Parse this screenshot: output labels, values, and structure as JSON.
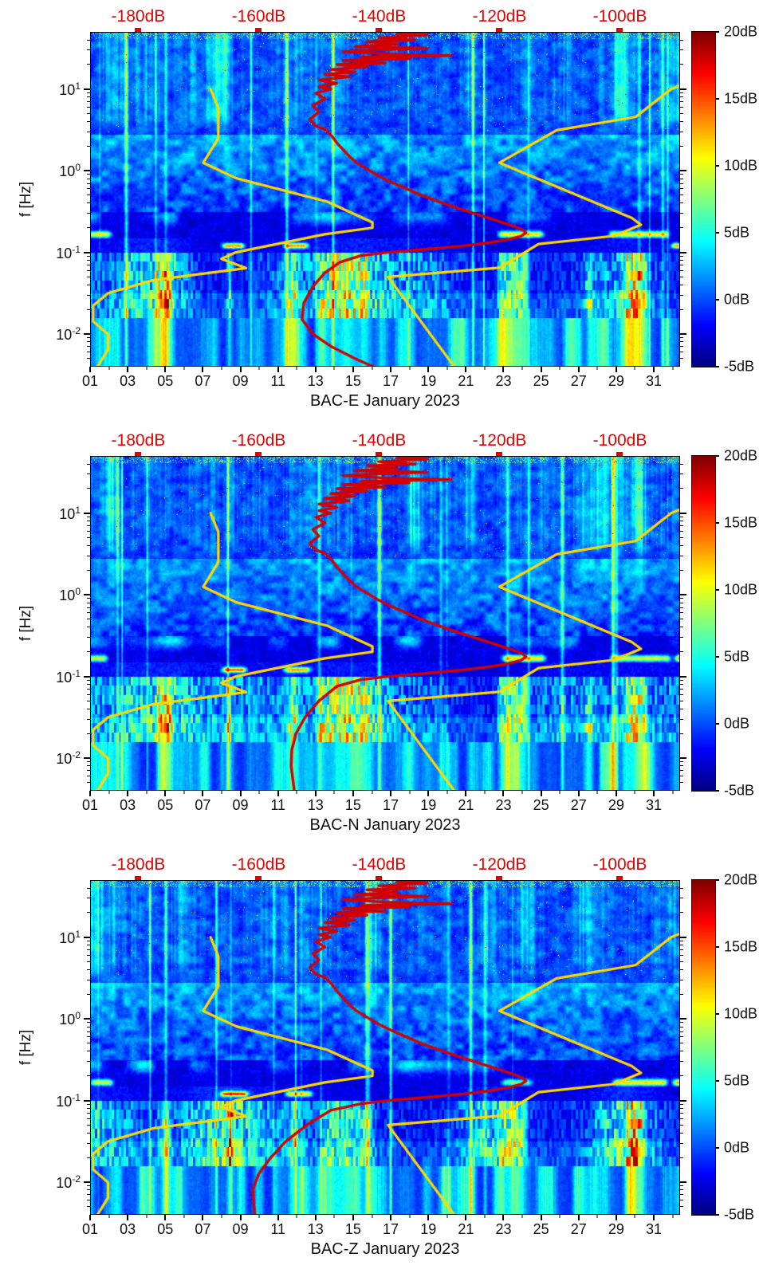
{
  "figure": {
    "background": "#ffffff"
  },
  "colors": {
    "top_axis_red": "#e60000",
    "red_curve": "#d40000",
    "yellow_curve": "#ffd900",
    "axis_text": "#111111",
    "tick": "#000000"
  },
  "top_axis": {
    "ticks": [
      "-180dB",
      "-160dB",
      "-140dB",
      "-120dB",
      "-100dB"
    ],
    "values": [
      -180,
      -160,
      -140,
      -120,
      -100
    ],
    "range": [
      -188,
      -90
    ]
  },
  "y_axis": {
    "label": "f [Hz]",
    "base": "10",
    "ticks": [
      {
        "exp": "1"
      },
      {
        "exp": "0"
      },
      {
        "exp": "-1"
      },
      {
        "exp": "-2"
      }
    ],
    "tick_values": [
      1,
      0,
      -1,
      -2
    ],
    "log_range": [
      1.7,
      -2.4
    ]
  },
  "x_axis": {
    "tick_labels": [
      "01",
      "03",
      "05",
      "07",
      "09",
      "11",
      "13",
      "15",
      "17",
      "19",
      "21",
      "23",
      "25",
      "27",
      "29",
      "31"
    ],
    "tick_days": [
      1,
      3,
      5,
      7,
      9,
      11,
      13,
      15,
      17,
      19,
      21,
      23,
      25,
      27,
      29,
      31
    ],
    "range": [
      1,
      32.4
    ]
  },
  "colorbar": {
    "ticks": [
      "20dB",
      "15dB",
      "10dB",
      "5dB",
      "0dB",
      "-5dB"
    ],
    "values": [
      20,
      15,
      10,
      5,
      0,
      -5
    ],
    "range": [
      -5,
      20
    ]
  },
  "noise_models": {
    "nlnm": [
      [
        1.0,
        -168.0
      ],
      [
        0.77,
        -166.7
      ],
      [
        0.398,
        -166.7
      ],
      [
        0.097,
        -169.2
      ],
      [
        -0.093,
        -163.7
      ],
      [
        -0.38,
        -148.6
      ],
      [
        -0.633,
        -141.1
      ],
      [
        -0.699,
        -141.1
      ],
      [
        -0.778,
        -149.0
      ],
      [
        -1.0,
        -163.8
      ],
      [
        -1.079,
        -166.2
      ],
      [
        -1.193,
        -162.1
      ],
      [
        -1.34,
        -177.5
      ],
      [
        -1.5,
        -185.0
      ],
      [
        -1.653,
        -187.5
      ],
      [
        -1.845,
        -187.5
      ],
      [
        -2.004,
        -185.0
      ],
      [
        -2.188,
        -185.0
      ],
      [
        -2.45,
        -187.2
      ]
    ],
    "nhnm": [
      [
        1.05,
        -89.8
      ],
      [
        1.0,
        -91.5
      ],
      [
        0.658,
        -97.4
      ],
      [
        0.495,
        -110.5
      ],
      [
        0.097,
        -120.0
      ],
      [
        -0.58,
        -98.0
      ],
      [
        -0.663,
        -96.5
      ],
      [
        -0.799,
        -101.0
      ],
      [
        -0.898,
        -113.5
      ],
      [
        -1.188,
        -120.0
      ],
      [
        -1.301,
        -138.5
      ],
      [
        -2.45,
        -127.0
      ]
    ]
  },
  "median_head": [
    [
      1.7,
      -131
    ],
    [
      1.68,
      -137
    ],
    [
      1.66,
      -132
    ],
    [
      1.63,
      -140
    ],
    [
      1.6,
      -134
    ],
    [
      1.58,
      -142
    ],
    [
      1.55,
      -137
    ],
    [
      1.52,
      -144
    ],
    [
      1.5,
      -132
    ],
    [
      1.48,
      -140
    ],
    [
      1.46,
      -146
    ],
    [
      1.43,
      -139
    ],
    [
      1.41,
      -128
    ],
    [
      1.39,
      -143
    ],
    [
      1.37,
      -135
    ],
    [
      1.35,
      -146
    ],
    [
      1.32,
      -139
    ],
    [
      1.3,
      -147
    ],
    [
      1.27,
      -142
    ],
    [
      1.24,
      -148
    ],
    [
      1.21,
      -144
    ],
    [
      1.18,
      -149
    ],
    [
      1.15,
      -145
    ],
    [
      1.11,
      -150
    ],
    [
      1.07,
      -147
    ],
    [
      1.03,
      -150
    ],
    [
      1.0,
      -148
    ],
    [
      0.95,
      -150.5
    ],
    [
      0.88,
      -149
    ],
    [
      0.8,
      -151
    ],
    [
      0.72,
      -150
    ],
    [
      0.63,
      -151.5
    ],
    [
      0.55,
      -150.5
    ],
    [
      0.5,
      -148.8
    ]
  ],
  "median_mid": [
    [
      0.42,
      -147.8
    ],
    [
      0.34,
      -147
    ],
    [
      0.26,
      -146
    ],
    [
      0.18,
      -145
    ],
    [
      0.1,
      -143.8
    ],
    [
      0.02,
      -142
    ],
    [
      -0.06,
      -140.2
    ],
    [
      -0.14,
      -138
    ],
    [
      -0.22,
      -135.5
    ],
    [
      -0.3,
      -133
    ],
    [
      -0.38,
      -130
    ],
    [
      -0.46,
      -126.8
    ],
    [
      -0.54,
      -123.5
    ],
    [
      -0.61,
      -120.5
    ],
    [
      -0.67,
      -118
    ],
    [
      -0.72,
      -116.2
    ],
    [
      -0.76,
      -115.6
    ],
    [
      -0.8,
      -116.4
    ],
    [
      -0.84,
      -118.4
    ],
    [
      -0.88,
      -121.5
    ],
    [
      -0.92,
      -126
    ],
    [
      -0.96,
      -132
    ],
    [
      -1.0,
      -138.5
    ],
    [
      -1.04,
      -143
    ]
  ],
  "chart_data": [
    {
      "type": "heatmap",
      "component": "E",
      "title": "BAC-E January 2023",
      "xlabel": "BAC-E January 2023",
      "ylabel": "f [Hz]",
      "units": "dB",
      "noise_seed": 101,
      "streaks_017": [
        [
          0.8,
          2.2,
          13
        ],
        [
          22.6,
          25.2,
          14
        ],
        [
          28.5,
          31.9,
          13
        ]
      ],
      "streaks_010": [
        [
          7.9,
          9.3,
          16
        ],
        [
          11.2,
          12.7,
          15
        ],
        [
          31.8,
          32.6,
          16
        ]
      ],
      "swell_cols": [
        [
          4.5,
          5.5,
          12
        ],
        [
          8.2,
          8.6,
          15
        ],
        [
          11.4,
          12.2,
          9
        ],
        [
          13.0,
          16.0,
          6
        ],
        [
          22.6,
          24.4,
          10
        ],
        [
          27.2,
          27.9,
          8
        ],
        [
          29.2,
          30.8,
          11
        ]
      ],
      "median_tail": [
        [
          -1.12,
          -146.5
        ],
        [
          -1.25,
          -149
        ],
        [
          -1.42,
          -151
        ],
        [
          -1.62,
          -152.5
        ],
        [
          -1.82,
          -152.8
        ],
        [
          -2.0,
          -151
        ],
        [
          -2.15,
          -148
        ],
        [
          -2.3,
          -144
        ],
        [
          -2.45,
          -139.5
        ]
      ]
    },
    {
      "type": "heatmap",
      "component": "N",
      "title": "BAC-N January 2023",
      "xlabel": "BAC-N January 2023",
      "ylabel": "f [Hz]",
      "units": "dB",
      "noise_seed": 202,
      "streaks_017": [
        [
          0.8,
          2.0,
          12
        ],
        [
          22.8,
          25.3,
          14
        ],
        [
          28.6,
          32.0,
          12
        ],
        [
          32.0,
          32.6,
          18
        ]
      ],
      "streaks_010": [
        [
          7.9,
          9.4,
          16
        ],
        [
          11.2,
          12.8,
          15
        ]
      ],
      "swell_cols": [
        [
          4.5,
          5.5,
          12
        ],
        [
          8.2,
          8.6,
          14
        ],
        [
          11.4,
          12.2,
          9
        ],
        [
          13.0,
          16.2,
          7
        ],
        [
          22.6,
          24.4,
          10
        ],
        [
          27.2,
          27.9,
          8
        ],
        [
          29.2,
          30.8,
          10
        ]
      ],
      "median_tail": [
        [
          -1.12,
          -147
        ],
        [
          -1.3,
          -150
        ],
        [
          -1.5,
          -152.3
        ],
        [
          -1.7,
          -153.8
        ],
        [
          -1.9,
          -154.5
        ],
        [
          -2.1,
          -154.6
        ],
        [
          -2.45,
          -154
        ]
      ]
    },
    {
      "type": "heatmap",
      "component": "Z",
      "title": "BAC-Z January 2023",
      "xlabel": "BAC-Z January 2023",
      "ylabel": "f [Hz]",
      "units": "dB",
      "noise_seed": 303,
      "streaks_017": [
        [
          0.9,
          2.3,
          12
        ],
        [
          22.8,
          24.6,
          9
        ],
        [
          28.7,
          31.8,
          14
        ],
        [
          31.9,
          32.6,
          16
        ]
      ],
      "streaks_010": [
        [
          7.8,
          9.5,
          17
        ],
        [
          11.3,
          12.9,
          14
        ]
      ],
      "swell_cols": [
        [
          4.6,
          5.4,
          10
        ],
        [
          8.2,
          8.7,
          17
        ],
        [
          11.5,
          12.2,
          8
        ],
        [
          13.2,
          16.2,
          7
        ],
        [
          22.7,
          24.3,
          8
        ],
        [
          29.3,
          30.6,
          10
        ]
      ],
      "median_tail": [
        [
          -1.12,
          -148
        ],
        [
          -1.3,
          -152
        ],
        [
          -1.5,
          -155.5
        ],
        [
          -1.7,
          -158
        ],
        [
          -1.9,
          -160
        ],
        [
          -2.1,
          -161
        ],
        [
          -2.45,
          -160.6
        ]
      ]
    }
  ]
}
